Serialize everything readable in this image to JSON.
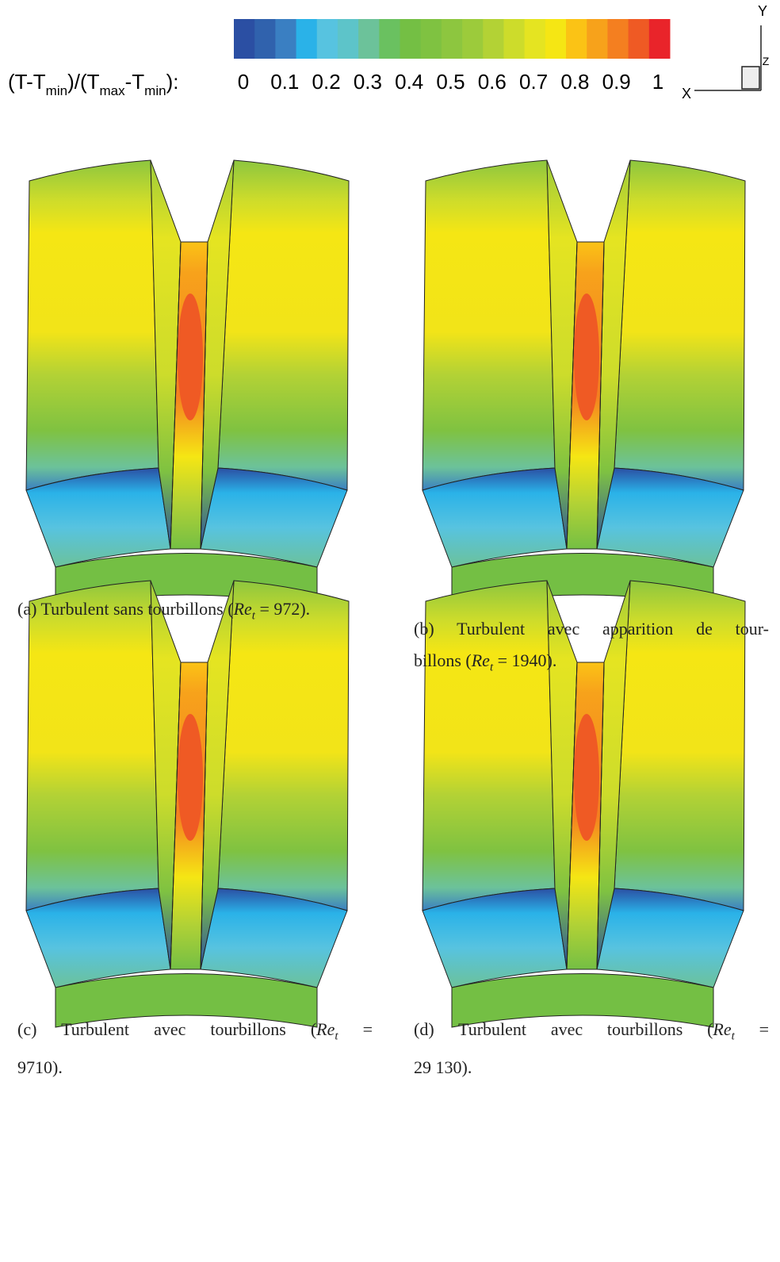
{
  "colorbar": {
    "label_parts": [
      "(T-T",
      "min",
      ")/(T",
      "max",
      "-T",
      "min",
      "):"
    ],
    "colors": [
      "#2b4fa3",
      "#3062ad",
      "#3a7fc2",
      "#2ab2e8",
      "#57c3e0",
      "#5dc4c9",
      "#6cc29a",
      "#6ac160",
      "#74bf44",
      "#7fc241",
      "#8dc63f",
      "#9ccb3b",
      "#b3d235",
      "#cddc2b",
      "#e5e421",
      "#f5e614",
      "#fbc315",
      "#f7a21b",
      "#f47f20",
      "#ef5a24",
      "#e9242a"
    ],
    "ticks": [
      0,
      0.1,
      0.2,
      0.3,
      0.4,
      0.5,
      0.6,
      0.7,
      0.8,
      0.9,
      1
    ]
  },
  "axes": {
    "x": "X",
    "y": "Y",
    "z": "Z"
  },
  "panels": [
    {
      "caption": [
        {
          "text": "(a) Turbulent sans tourbillons (",
          "var": "Re",
          "sub": "t",
          "after": " = 972)."
        }
      ]
    },
    {
      "caption": [
        {
          "text": "(b) Turbulent avec apparition de tour-"
        },
        {
          "text": "billons (",
          "var": "Re",
          "sub": "t",
          "after": " = 1940)."
        }
      ]
    },
    {
      "caption": [
        {
          "text": "(c) Turbulent avec tourbillons (",
          "var": "Re",
          "sub": "t",
          "after": " ="
        },
        {
          "text": "9710)."
        }
      ]
    },
    {
      "caption": [
        {
          "text": "(d) Turbulent avec tourbillons (",
          "var": "Re",
          "sub": "t",
          "after": " ="
        },
        {
          "text": "29 130)."
        }
      ]
    }
  ]
}
